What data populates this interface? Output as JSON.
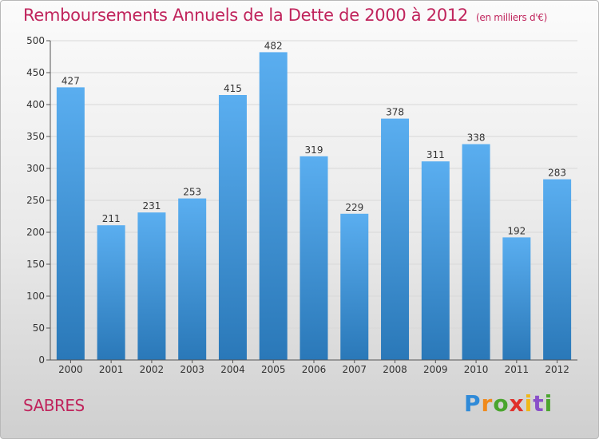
{
  "header": {
    "title": "Remboursements Annuels de la Dette de 2000 à 2012",
    "subtitle": "(en milliers d'€)"
  },
  "footer": {
    "town": "SABRES",
    "brand_letters": [
      "P",
      "r",
      "o",
      "x",
      "i",
      "t",
      "i"
    ]
  },
  "colors": {
    "title": "#c0245c",
    "bar_top": "#5aaef0",
    "bar_bottom": "#2a78b8",
    "grid": "#d8d8d8",
    "axis_text": "#333333"
  },
  "chart_data": {
    "type": "bar",
    "title": "Remboursements Annuels de la Dette de 2000 à 2012",
    "subtitle": "(en milliers d'€)",
    "xlabel": "",
    "ylabel": "",
    "categories": [
      "2000",
      "2001",
      "2002",
      "2003",
      "2004",
      "2005",
      "2006",
      "2007",
      "2008",
      "2009",
      "2010",
      "2011",
      "2012"
    ],
    "values": [
      427,
      211,
      231,
      253,
      415,
      482,
      319,
      229,
      378,
      311,
      338,
      192,
      283
    ],
    "ylim": [
      0,
      500
    ],
    "yticks": [
      0,
      50,
      100,
      150,
      200,
      250,
      300,
      350,
      400,
      450,
      500
    ],
    "grid": true,
    "data_labels": true
  }
}
